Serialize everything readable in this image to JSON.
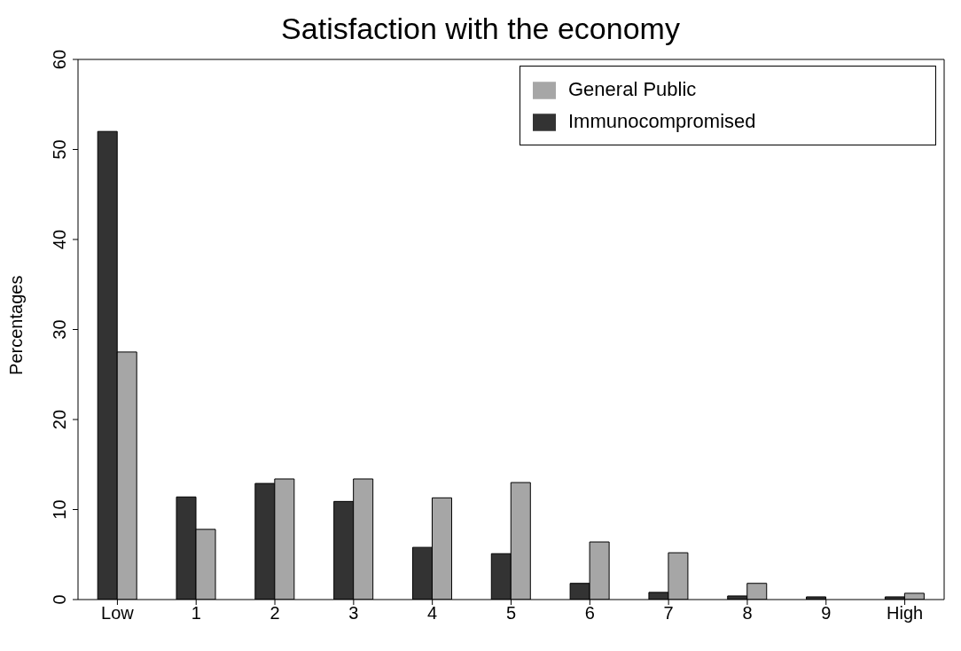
{
  "chart_data": {
    "type": "bar",
    "title": "Satisfaction with the economy",
    "ylabel": "Percentages",
    "categories": [
      "Low",
      "1",
      "2",
      "3",
      "4",
      "5",
      "6",
      "7",
      "8",
      "9",
      "High"
    ],
    "series": [
      {
        "name": "Immunocompromised",
        "color": "#333333",
        "values": [
          52,
          11.4,
          12.9,
          10.9,
          5.8,
          5.1,
          1.8,
          0.8,
          0.4,
          0.3,
          0.3
        ]
      },
      {
        "name": "General Public",
        "color": "#a6a6a6",
        "values": [
          27.5,
          7.8,
          13.4,
          13.4,
          11.3,
          13.0,
          6.4,
          5.2,
          1.8,
          0,
          0.7
        ]
      }
    ],
    "ylim": [
      0,
      60
    ],
    "yticks": [
      0,
      10,
      20,
      30,
      40,
      50,
      60
    ],
    "grid": false,
    "legend": "top right"
  }
}
